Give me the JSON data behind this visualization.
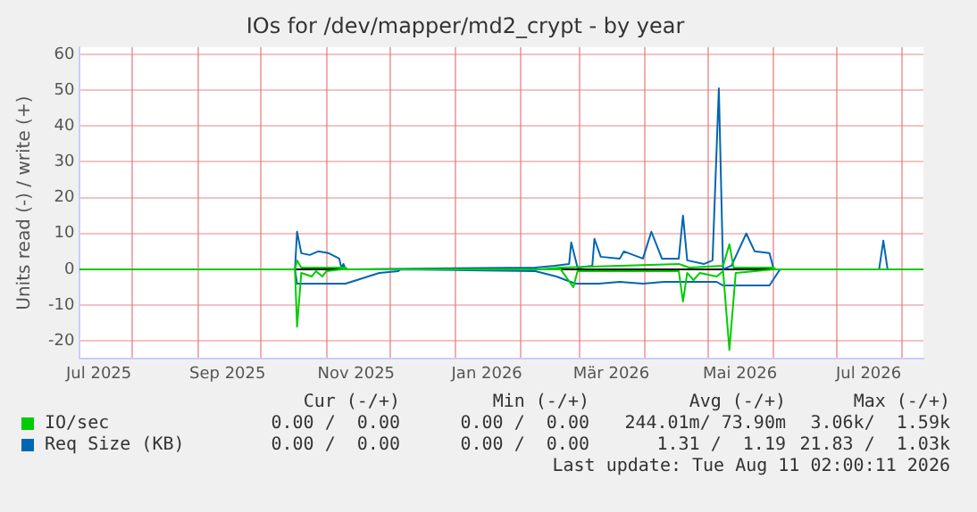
{
  "chart_data": {
    "type": "line",
    "title": "IOs for /dev/mapper/md2_crypt - by year",
    "ylabel": "Units read (-) / write (+)",
    "xlim": [
      "2025-07-07",
      "2026-08-11"
    ],
    "xticks": [
      {
        "value": "2025-07-16",
        "label": "Jul 2025"
      },
      {
        "value": "2025-08-01",
        "label": null
      },
      {
        "value": "2025-09-01",
        "label": null
      },
      {
        "value": "2025-09-15",
        "label": "Sep 2025"
      },
      {
        "value": "2025-10-01",
        "label": null
      },
      {
        "value": "2025-11-01",
        "label": null
      },
      {
        "value": "2025-11-15",
        "label": "Nov 2025"
      },
      {
        "value": "2025-12-01",
        "label": null
      },
      {
        "value": "2026-01-01",
        "label": null
      },
      {
        "value": "2026-01-16",
        "label": "Jan 2026"
      },
      {
        "value": "2026-02-01",
        "label": null
      },
      {
        "value": "2026-03-01",
        "label": null
      },
      {
        "value": "2026-03-16",
        "label": "Mär 2026"
      },
      {
        "value": "2026-04-01",
        "label": null
      },
      {
        "value": "2026-05-01",
        "label": null
      },
      {
        "value": "2026-05-16",
        "label": "Mai 2026"
      },
      {
        "value": "2026-06-01",
        "label": null
      },
      {
        "value": "2026-07-01",
        "label": null
      },
      {
        "value": "2026-07-16",
        "label": "Jul 2026"
      },
      {
        "value": "2026-08-01",
        "label": null
      }
    ],
    "ylim": [
      -25,
      62
    ],
    "yticks": [
      -20,
      -10,
      0,
      10,
      20,
      30,
      40,
      50,
      60
    ],
    "grid": true,
    "legend": "bottom",
    "ref_lines": [
      {
        "axis": "y",
        "value": 0,
        "color": "#000000"
      }
    ],
    "series": [
      {
        "name": "IO/sec",
        "color": "#00cc00",
        "x": [
          "2025-07-07",
          "2025-10-17",
          "2025-10-18",
          "2025-10-20",
          "2025-11-10",
          "2025-11-11",
          "2026-02-10",
          "2026-02-20",
          "2026-04-17",
          "2026-04-22",
          "2026-05-08",
          "2026-05-11",
          "2026-05-13",
          "2026-06-01",
          "2026-06-02",
          "2026-08-11"
        ],
        "values": [
          0,
          0,
          2.5,
          0.5,
          0.5,
          0,
          0,
          0.5,
          1.5,
          0.5,
          1,
          7,
          0.5,
          0.5,
          0,
          0
        ]
      },
      {
        "color": "#00cc00",
        "x": [
          "2025-07-07",
          "2025-10-17",
          "2025-10-18",
          "2025-10-20",
          "2025-10-25",
          "2025-10-27",
          "2025-10-30",
          "2025-11-01",
          "2025-11-08",
          "2026-02-20",
          "2026-02-26",
          "2026-02-28",
          "2026-04-17",
          "2026-04-19",
          "2026-04-21",
          "2026-04-24",
          "2026-04-27",
          "2026-05-05",
          "2026-05-08",
          "2026-05-11",
          "2026-05-14",
          "2026-06-01",
          "2026-08-11"
        ],
        "values": [
          0,
          0,
          -16,
          -1,
          -2,
          -0.5,
          -2,
          -0.5,
          0,
          0,
          -5,
          -0.5,
          -0.5,
          -9,
          -1,
          -3,
          -1,
          -2,
          -0.5,
          -22.5,
          -1,
          0,
          0
        ]
      },
      {
        "name": "Req Size (KB)",
        "color": "#0066b3",
        "x": [
          "2025-07-07",
          "2025-10-17",
          "2025-10-18",
          "2025-10-20",
          "2025-10-24",
          "2025-10-28",
          "2025-11-02",
          "2025-11-07",
          "2025-11-08",
          "2025-11-09",
          "2025-11-10",
          "2026-02-08",
          "2026-02-17",
          "2026-02-24",
          "2026-02-25",
          "2026-02-28",
          "2026-03-07",
          "2026-03-08",
          "2026-03-11",
          "2026-03-20",
          "2026-03-22",
          "2026-03-31",
          "2026-04-04",
          "2026-04-09",
          "2026-04-17",
          "2026-04-19",
          "2026-04-21",
          "2026-04-29",
          "2026-05-03",
          "2026-05-06",
          "2026-05-08",
          "2026-05-12",
          "2026-05-19",
          "2026-05-23",
          "2026-05-30",
          "2026-06-01",
          "2026-07-21",
          "2026-07-23",
          "2026-07-25",
          "2026-08-11"
        ],
        "values": [
          0,
          0,
          10.5,
          4.5,
          4,
          5,
          4.5,
          3,
          0.5,
          1.5,
          0,
          0.5,
          1,
          1.5,
          7.5,
          0.5,
          1,
          8.5,
          3.5,
          3,
          5,
          3,
          10.5,
          3,
          3,
          15,
          2.5,
          1.5,
          2.5,
          50.5,
          0,
          1,
          10,
          5,
          4.5,
          0,
          0,
          8,
          0,
          0
        ]
      },
      {
        "color": "#0066b3",
        "x": [
          "2025-07-07",
          "2025-10-17",
          "2025-10-18",
          "2025-11-10",
          "2025-11-18",
          "2025-11-26",
          "2025-12-05",
          "2025-12-06",
          "2026-02-08",
          "2026-02-18",
          "2026-02-27",
          "2026-03-10",
          "2026-03-20",
          "2026-03-31",
          "2026-04-10",
          "2026-05-05",
          "2026-05-08",
          "2026-05-30",
          "2026-06-04",
          "2026-08-11"
        ],
        "values": [
          0,
          0,
          -4,
          -4,
          -2.5,
          -1,
          -0.5,
          0,
          -0.5,
          -2,
          -4,
          -4,
          -3.5,
          -4,
          -3.5,
          -3.5,
          -4.5,
          -4.5,
          0,
          0
        ]
      }
    ],
    "annotations": [
      "Cur (-/+)",
      "Min (-/+)",
      "Avg (-/+)",
      "Max (-/+)",
      "0.00 /  0.00",
      "0.00 /  0.00",
      "244.01m/ 73.90m",
      "3.06k/  1.59k",
      "0.00 /  0.00",
      "0.00 /  0.00",
      "1.31 /  1.19",
      "21.83 /  1.03k",
      "Last update: Tue Aug 11 02:00:11 2026"
    ]
  }
}
